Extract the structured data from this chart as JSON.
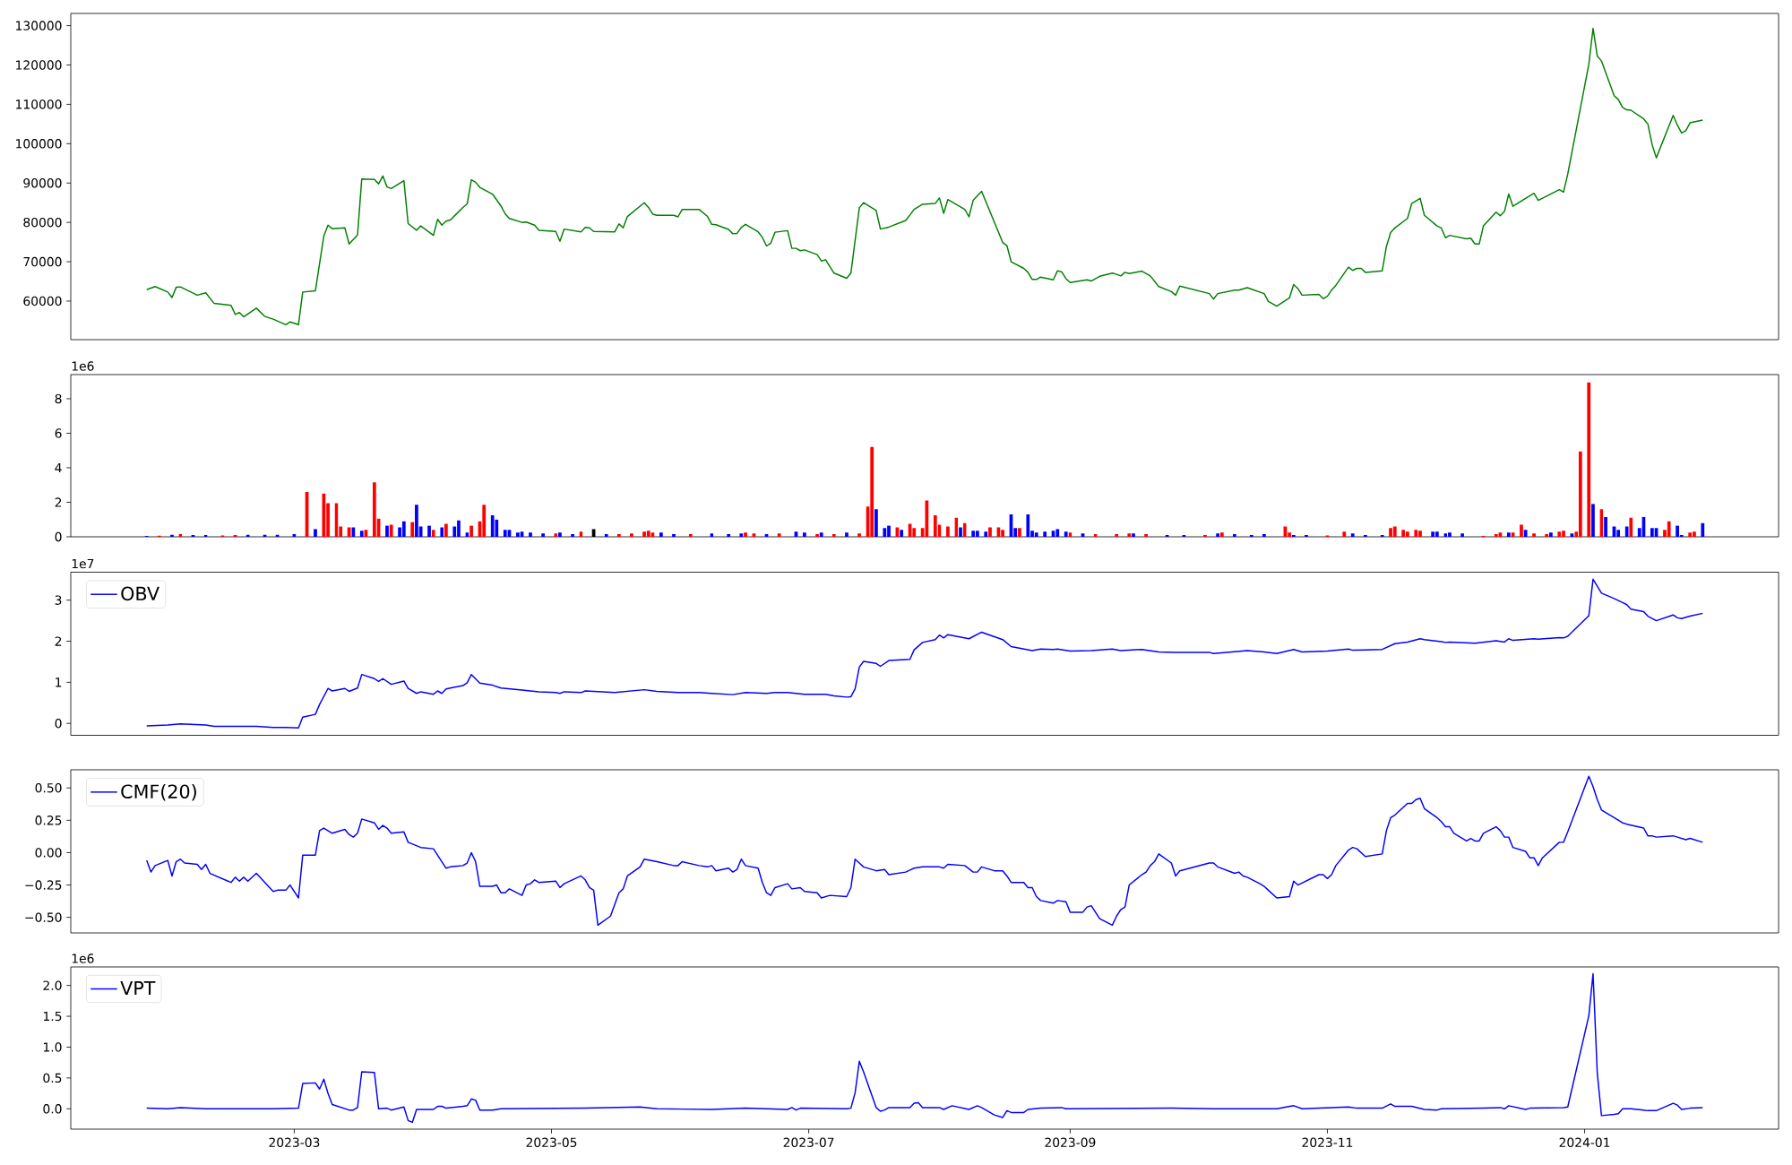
{
  "chart_data": [
    {
      "type": "line",
      "color": "#008000",
      "xlim": [
        "2023-01-07",
        "2024-02-16"
      ],
      "ylim": [
        50200,
        133100
      ],
      "yticks": [
        60000,
        70000,
        80000,
        90000,
        100000,
        110000,
        120000,
        130000
      ],
      "tick_labels": "y",
      "x": [
        "2023-01-25",
        "2023-01-27",
        "2023-01-30",
        "2023-01-31",
        "2023-02-01",
        "2023-02-02",
        "2023-02-06",
        "2023-02-08",
        "2023-02-10",
        "2023-02-14",
        "2023-02-15",
        "2023-02-16",
        "2023-02-17",
        "2023-02-20",
        "2023-02-22",
        "2023-02-24",
        "2023-02-27",
        "2023-02-28",
        "2023-03-02",
        "2023-03-03",
        "2023-03-06",
        "2023-03-08",
        "2023-03-09",
        "2023-03-10",
        "2023-03-13",
        "2023-03-14",
        "2023-03-16",
        "2023-03-17",
        "2023-03-20",
        "2023-03-21",
        "2023-03-22",
        "2023-03-23",
        "2023-03-24",
        "2023-03-27",
        "2023-03-28",
        "2023-03-30",
        "2023-03-31",
        "2023-04-03",
        "2023-04-04",
        "2023-04-05",
        "2023-04-06",
        "2023-04-07",
        "2023-04-10",
        "2023-04-11",
        "2023-04-12",
        "2023-04-13",
        "2023-04-14",
        "2023-04-17",
        "2023-04-19",
        "2023-04-20",
        "2023-04-21",
        "2023-04-24",
        "2023-04-25",
        "2023-04-27",
        "2023-04-28",
        "2023-05-02",
        "2023-05-03",
        "2023-05-04",
        "2023-05-08",
        "2023-05-09",
        "2023-05-10",
        "2023-05-11",
        "2023-05-16",
        "2023-05-17",
        "2023-05-18",
        "2023-05-19",
        "2023-05-23",
        "2023-05-24",
        "2023-05-25",
        "2023-05-26",
        "2023-05-30",
        "2023-05-31",
        "2023-06-01",
        "2023-06-05",
        "2023-06-07",
        "2023-06-08",
        "2023-06-09",
        "2023-06-12",
        "2023-06-13",
        "2023-06-14",
        "2023-06-15",
        "2023-06-16",
        "2023-06-19",
        "2023-06-20",
        "2023-06-21",
        "2023-06-22",
        "2023-06-23",
        "2023-06-26",
        "2023-06-27",
        "2023-06-28",
        "2023-06-29",
        "2023-06-30",
        "2023-07-03",
        "2023-07-04",
        "2023-07-05",
        "2023-07-07",
        "2023-07-10",
        "2023-07-11",
        "2023-07-13",
        "2023-07-14",
        "2023-07-17",
        "2023-07-18",
        "2023-07-20",
        "2023-07-24",
        "2023-07-26",
        "2023-07-28",
        "2023-07-31",
        "2023-08-01",
        "2023-08-02",
        "2023-08-03",
        "2023-08-07",
        "2023-08-08",
        "2023-08-09",
        "2023-08-11",
        "2023-08-16",
        "2023-08-17",
        "2023-08-18",
        "2023-08-21",
        "2023-08-22",
        "2023-08-23",
        "2023-08-24",
        "2023-08-25",
        "2023-08-28",
        "2023-08-29",
        "2023-08-30",
        "2023-08-31",
        "2023-09-01",
        "2023-09-05",
        "2023-09-06",
        "2023-09-08",
        "2023-09-11",
        "2023-09-12",
        "2023-09-13",
        "2023-09-14",
        "2023-09-15",
        "2023-09-18",
        "2023-09-20",
        "2023-09-22",
        "2023-09-25",
        "2023-09-26",
        "2023-09-27",
        "2023-10-04",
        "2023-10-05",
        "2023-10-06",
        "2023-10-10",
        "2023-10-11",
        "2023-10-13",
        "2023-10-17",
        "2023-10-18",
        "2023-10-20",
        "2023-10-23",
        "2023-10-24",
        "2023-10-25",
        "2023-10-26",
        "2023-10-30",
        "2023-10-31",
        "2023-11-01",
        "2023-11-02",
        "2023-11-03",
        "2023-11-06",
        "2023-11-07",
        "2023-11-08",
        "2023-11-09",
        "2023-11-10",
        "2023-11-14",
        "2023-11-15",
        "2023-11-16",
        "2023-11-17",
        "2023-11-20",
        "2023-11-21",
        "2023-11-23",
        "2023-11-24",
        "2023-11-27",
        "2023-11-28",
        "2023-11-29",
        "2023-11-30",
        "2023-12-04",
        "2023-12-05",
        "2023-12-06",
        "2023-12-07",
        "2023-12-08",
        "2023-12-11",
        "2023-12-12",
        "2023-12-13",
        "2023-12-14",
        "2023-12-15",
        "2023-12-18",
        "2023-12-20",
        "2023-12-21",
        "2023-12-26",
        "2023-12-27",
        "2023-12-28",
        "2024-01-02",
        "2024-01-03",
        "2024-01-04",
        "2024-01-05",
        "2024-01-08",
        "2024-01-09",
        "2024-01-10",
        "2024-01-11",
        "2024-01-12",
        "2024-01-15",
        "2024-01-16",
        "2024-01-17",
        "2024-01-18",
        "2024-01-22",
        "2024-01-23",
        "2024-01-24",
        "2024-01-25",
        "2024-01-26",
        "2024-01-29"
      ],
      "values": [
        62900,
        63700,
        62300,
        60900,
        63500,
        63600,
        61500,
        62100,
        59400,
        58900,
        56600,
        57100,
        56000,
        58200,
        56100,
        55400,
        54000,
        54700,
        54000,
        62300,
        62600,
        76500,
        79300,
        78400,
        78600,
        74500,
        76800,
        91000,
        90900,
        89800,
        91800,
        89000,
        88600,
        90600,
        79700,
        78000,
        79100,
        76700,
        80800,
        79300,
        80300,
        80600,
        83800,
        84700,
        90800,
        90200,
        88900,
        87200,
        84200,
        82200,
        81000,
        80000,
        80100,
        79300,
        78000,
        77700,
        75200,
        78300,
        77600,
        78700,
        78600,
        77700,
        77600,
        79600,
        78600,
        81500,
        85000,
        83800,
        82100,
        81800,
        81800,
        81400,
        83300,
        83300,
        81500,
        79500,
        79400,
        78200,
        77100,
        77200,
        78700,
        79500,
        77600,
        76200,
        74000,
        74700,
        77500,
        77900,
        73400,
        73400,
        72800,
        73000,
        71800,
        70200,
        70500,
        67100,
        65800,
        67100,
        83700,
        85000,
        83000,
        78300,
        78800,
        80500,
        83300,
        84600,
        84800,
        86200,
        82300,
        85800,
        83300,
        81400,
        85600,
        87900,
        74900,
        74100,
        70000,
        68300,
        67300,
        65500,
        65500,
        66100,
        65400,
        67700,
        67400,
        65700,
        64700,
        65400,
        65100,
        66300,
        67100,
        66800,
        66400,
        67300,
        67000,
        67600,
        66400,
        63700,
        62400,
        61500,
        63800,
        61900,
        60500,
        61900,
        62800,
        62800,
        63400,
        61900,
        59900,
        58700,
        60800,
        64200,
        63200,
        61500,
        61700,
        60600,
        61200,
        62800,
        64000,
        68600,
        67800,
        68300,
        68300,
        67300,
        67700,
        73900,
        77400,
        78600,
        81000,
        84800,
        86100,
        81800,
        79100,
        78600,
        76100,
        76700,
        75800,
        76000,
        74500,
        74500,
        79100,
        82600,
        81700,
        82800,
        87200,
        84100,
        86100,
        87400,
        85600,
        88300,
        87700,
        92300,
        120200,
        129300,
        122300,
        121000,
        112200,
        111200,
        109200,
        108600,
        108500,
        106300,
        105000,
        99800,
        96400,
        107200,
        104700,
        102700,
        103300,
        105300,
        106000
      ]
    },
    {
      "type": "bar",
      "xlim": [
        "2023-01-07",
        "2024-02-16"
      ],
      "ylim": [
        0,
        9.4
      ],
      "yticks": [
        0,
        2,
        4,
        6,
        8
      ],
      "tick_labels": "y",
      "annotations": [
        "1e6"
      ],
      "x": [
        "2023-01-25",
        "2023-01-28",
        "2023-01-31",
        "2023-02-02",
        "2023-02-05",
        "2023-02-08",
        "2023-02-12",
        "2023-02-15",
        "2023-02-18",
        "2023-02-22",
        "2023-02-25",
        "2023-03-01",
        "2023-03-04",
        "2023-03-06",
        "2023-03-08",
        "2023-03-09",
        "2023-03-11",
        "2023-03-12",
        "2023-03-14",
        "2023-03-15",
        "2023-03-17",
        "2023-03-18",
        "2023-03-20",
        "2023-03-21",
        "2023-03-23",
        "2023-03-24",
        "2023-03-26",
        "2023-03-27",
        "2023-03-29",
        "2023-03-30",
        "2023-03-31",
        "2023-04-02",
        "2023-04-03",
        "2023-04-05",
        "2023-04-06",
        "2023-04-08",
        "2023-04-09",
        "2023-04-11",
        "2023-04-12",
        "2023-04-14",
        "2023-04-15",
        "2023-04-17",
        "2023-04-18",
        "2023-04-20",
        "2023-04-21",
        "2023-04-23",
        "2023-04-24",
        "2023-04-26",
        "2023-04-29",
        "2023-05-02",
        "2023-05-03",
        "2023-05-06",
        "2023-05-08",
        "2023-05-11",
        "2023-05-14",
        "2023-05-17",
        "2023-05-20",
        "2023-05-23",
        "2023-05-24",
        "2023-05-25",
        "2023-05-27",
        "2023-05-30",
        "2023-06-03",
        "2023-06-08",
        "2023-06-12",
        "2023-06-15",
        "2023-06-16",
        "2023-06-18",
        "2023-06-21",
        "2023-06-24",
        "2023-06-28",
        "2023-06-30",
        "2023-07-03",
        "2023-07-04",
        "2023-07-07",
        "2023-07-10",
        "2023-07-13",
        "2023-07-15",
        "2023-07-16",
        "2023-07-17",
        "2023-07-19",
        "2023-07-20",
        "2023-07-22",
        "2023-07-23",
        "2023-07-25",
        "2023-07-26",
        "2023-07-28",
        "2023-07-29",
        "2023-07-31",
        "2023-08-01",
        "2023-08-03",
        "2023-08-05",
        "2023-08-06",
        "2023-08-07",
        "2023-08-09",
        "2023-08-10",
        "2023-08-12",
        "2023-08-13",
        "2023-08-15",
        "2023-08-16",
        "2023-08-18",
        "2023-08-19",
        "2023-08-20",
        "2023-08-22",
        "2023-08-23",
        "2023-08-24",
        "2023-08-26",
        "2023-08-28",
        "2023-08-29",
        "2023-08-31",
        "2023-09-01",
        "2023-09-04",
        "2023-09-07",
        "2023-09-12",
        "2023-09-15",
        "2023-09-16",
        "2023-09-19",
        "2023-09-24",
        "2023-09-28",
        "2023-10-03",
        "2023-10-06",
        "2023-10-07",
        "2023-10-10",
        "2023-10-14",
        "2023-10-17",
        "2023-10-22",
        "2023-10-23",
        "2023-10-24",
        "2023-10-27",
        "2023-11-01",
        "2023-11-05",
        "2023-11-07",
        "2023-11-10",
        "2023-11-14",
        "2023-11-16",
        "2023-11-17",
        "2023-11-19",
        "2023-11-20",
        "2023-11-22",
        "2023-11-23",
        "2023-11-26",
        "2023-11-27",
        "2023-11-29",
        "2023-11-30",
        "2023-12-03",
        "2023-12-08",
        "2023-12-11",
        "2023-12-12",
        "2023-12-14",
        "2023-12-15",
        "2023-12-17",
        "2023-12-18",
        "2023-12-20",
        "2023-12-23",
        "2023-12-24",
        "2023-12-26",
        "2023-12-27",
        "2023-12-29",
        "2023-12-30",
        "2023-12-31",
        "2024-01-02",
        "2024-01-03",
        "2024-01-05",
        "2024-01-06",
        "2024-01-08",
        "2024-01-09",
        "2024-01-11",
        "2024-01-12",
        "2024-01-14",
        "2024-01-15",
        "2024-01-17",
        "2024-01-18",
        "2024-01-20",
        "2024-01-21",
        "2024-01-23",
        "2024-01-24",
        "2024-01-26",
        "2024-01-27",
        "2024-01-29"
      ],
      "values": [
        0.05,
        0.06,
        0.12,
        0.17,
        0.1,
        0.1,
        0.08,
        0.1,
        0.12,
        0.12,
        0.12,
        0.15,
        2.6,
        0.45,
        2.5,
        1.95,
        1.95,
        0.6,
        0.55,
        0.55,
        0.35,
        0.4,
        3.15,
        1.05,
        0.65,
        0.7,
        0.55,
        0.9,
        0.85,
        1.85,
        0.6,
        0.65,
        0.4,
        0.55,
        0.75,
        0.6,
        0.95,
        0.25,
        0.65,
        0.9,
        1.85,
        1.25,
        1.0,
        0.4,
        0.4,
        0.25,
        0.3,
        0.25,
        0.2,
        0.2,
        0.25,
        0.15,
        0.3,
        0.45,
        0.15,
        0.15,
        0.2,
        0.3,
        0.35,
        0.25,
        0.25,
        0.15,
        0.15,
        0.2,
        0.15,
        0.2,
        0.25,
        0.2,
        0.15,
        0.2,
        0.3,
        0.25,
        0.15,
        0.25,
        0.15,
        0.25,
        0.2,
        1.75,
        5.2,
        1.6,
        0.5,
        0.65,
        0.55,
        0.4,
        0.75,
        0.5,
        0.5,
        2.1,
        1.25,
        0.7,
        0.6,
        1.1,
        0.55,
        0.8,
        0.35,
        0.35,
        0.3,
        0.55,
        0.55,
        0.4,
        1.3,
        0.5,
        0.5,
        1.3,
        0.35,
        0.25,
        0.3,
        0.35,
        0.45,
        0.3,
        0.25,
        0.2,
        0.15,
        0.15,
        0.2,
        0.2,
        0.15,
        0.1,
        0.1,
        0.1,
        0.2,
        0.25,
        0.15,
        0.1,
        0.15,
        0.6,
        0.25,
        0.1,
        0.1,
        0.08,
        0.3,
        0.2,
        0.1,
        0.1,
        0.5,
        0.6,
        0.4,
        0.3,
        0.4,
        0.35,
        0.3,
        0.3,
        0.2,
        0.25,
        0.2,
        0.05,
        0.15,
        0.25,
        0.25,
        0.25,
        0.7,
        0.4,
        0.2,
        0.15,
        0.25,
        0.3,
        0.35,
        0.2,
        0.3,
        4.95,
        8.95,
        1.9,
        1.6,
        1.15,
        0.6,
        0.4,
        0.6,
        1.1,
        0.5,
        1.15,
        0.5,
        0.5,
        0.4,
        0.9,
        0.65,
        0.1,
        0.25,
        0.3,
        0.8
      ],
      "colors": [
        "#0000ff",
        "#ff0000",
        "#0000ff",
        "#ff0000",
        "#0000ff",
        "#0000ff",
        "#ff0000",
        "#ff0000",
        "#0000ff",
        "#0000ff",
        "#0000ff",
        "#0000ff",
        "#ff0000",
        "#0000ff",
        "#ff0000",
        "#ff0000",
        "#ff0000",
        "#ff0000",
        "#ff0000",
        "#0000ff",
        "#0000ff",
        "#ff0000",
        "#ff0000",
        "#ff0000",
        "#0000ff",
        "#ff0000",
        "#0000ff",
        "#0000ff",
        "#ff0000",
        "#0000ff",
        "#0000ff",
        "#0000ff",
        "#ff0000",
        "#0000ff",
        "#ff0000",
        "#0000ff",
        "#0000ff",
        "#0000ff",
        "#ff0000",
        "#ff0000",
        "#ff0000",
        "#0000ff",
        "#0000ff",
        "#0000ff",
        "#0000ff",
        "#0000ff",
        "#0000ff",
        "#0000ff",
        "#0000ff",
        "#ff0000",
        "#0000ff",
        "#0000ff",
        "#ff0000",
        "#000000",
        "#0000ff",
        "#ff0000",
        "#ff0000",
        "#ff0000",
        "#ff0000",
        "#ff0000",
        "#0000ff",
        "#0000ff",
        "#ff0000",
        "#0000ff",
        "#0000ff",
        "#0000ff",
        "#ff0000",
        "#ff0000",
        "#0000ff",
        "#ff0000",
        "#0000ff",
        "#0000ff",
        "#ff0000",
        "#0000ff",
        "#ff0000",
        "#0000ff",
        "#ff0000",
        "#ff0000",
        "#ff0000",
        "#0000ff",
        "#0000ff",
        "#0000ff",
        "#ff0000",
        "#0000ff",
        "#ff0000",
        "#ff0000",
        "#ff0000",
        "#ff0000",
        "#ff0000",
        "#ff0000",
        "#ff0000",
        "#ff0000",
        "#0000ff",
        "#ff0000",
        "#0000ff",
        "#0000ff",
        "#0000ff",
        "#ff0000",
        "#ff0000",
        "#ff0000",
        "#0000ff",
        "#0000ff",
        "#ff0000",
        "#0000ff",
        "#0000ff",
        "#0000ff",
        "#0000ff",
        "#0000ff",
        "#0000ff",
        "#0000ff",
        "#ff0000",
        "#0000ff",
        "#ff0000",
        "#ff0000",
        "#ff0000",
        "#0000ff",
        "#ff0000",
        "#0000ff",
        "#0000ff",
        "#ff0000",
        "#0000ff",
        "#ff0000",
        "#0000ff",
        "#0000ff",
        "#0000ff",
        "#ff0000",
        "#ff0000",
        "#0000ff",
        "#0000ff",
        "#ff0000",
        "#ff0000",
        "#0000ff",
        "#0000ff",
        "#0000ff",
        "#ff0000",
        "#ff0000",
        "#ff0000",
        "#ff0000",
        "#ff0000",
        "#ff0000",
        "#0000ff",
        "#0000ff",
        "#0000ff",
        "#0000ff",
        "#0000ff",
        "#ff0000",
        "#ff0000",
        "#ff0000",
        "#0000ff",
        "#ff0000",
        "#ff0000",
        "#0000ff",
        "#ff0000",
        "#ff0000",
        "#0000ff",
        "#ff0000",
        "#ff0000",
        "#0000ff",
        "#ff0000",
        "#ff0000",
        "#ff0000",
        "#0000ff",
        "#ff0000",
        "#0000ff",
        "#0000ff",
        "#0000ff",
        "#0000ff",
        "#ff0000",
        "#0000ff",
        "#0000ff",
        "#0000ff",
        "#0000ff",
        "#ff0000",
        "#ff0000",
        "#0000ff",
        "#0000ff",
        "#ff0000",
        "#ff0000",
        "#0000ff"
      ]
    },
    {
      "type": "line",
      "xlim": [
        "2023-01-07",
        "2024-02-16"
      ],
      "ylim": [
        -0.29,
        3.68
      ],
      "yticks": [
        0,
        1,
        2,
        3
      ],
      "tick_labels": "y",
      "legend": "top left",
      "annotations": [
        "1e7"
      ],
      "x": [
        "2023-01-25",
        "2023-01-30",
        "2023-02-02",
        "2023-02-08",
        "2023-02-10",
        "2023-02-16",
        "2023-02-20",
        "2023-02-24",
        "2023-02-27",
        "2023-03-02",
        "2023-03-03",
        "2023-03-06",
        "2023-03-07",
        "2023-03-09",
        "2023-03-10",
        "2023-03-13",
        "2023-03-14",
        "2023-03-16",
        "2023-03-17",
        "2023-03-20",
        "2023-03-21",
        "2023-03-22",
        "2023-03-24",
        "2023-03-27",
        "2023-03-28",
        "2023-03-30",
        "2023-03-31",
        "2023-04-03",
        "2023-04-04",
        "2023-04-05",
        "2023-04-06",
        "2023-04-10",
        "2023-04-11",
        "2023-04-12",
        "2023-04-14",
        "2023-04-17",
        "2023-04-19",
        "2023-04-24",
        "2023-04-28",
        "2023-05-02",
        "2023-05-03",
        "2023-05-04",
        "2023-05-08",
        "2023-05-09",
        "2023-05-16",
        "2023-05-23",
        "2023-05-26",
        "2023-05-31",
        "2023-06-05",
        "2023-06-08",
        "2023-06-13",
        "2023-06-16",
        "2023-06-21",
        "2023-06-23",
        "2023-06-26",
        "2023-06-30",
        "2023-07-05",
        "2023-07-07",
        "2023-07-10",
        "2023-07-11",
        "2023-07-12",
        "2023-07-13",
        "2023-07-14",
        "2023-07-17",
        "2023-07-18",
        "2023-07-20",
        "2023-07-25",
        "2023-07-26",
        "2023-07-28",
        "2023-07-31",
        "2023-08-01",
        "2023-08-02",
        "2023-08-03",
        "2023-08-08",
        "2023-08-11",
        "2023-08-16",
        "2023-08-18",
        "2023-08-23",
        "2023-08-25",
        "2023-08-28",
        "2023-08-29",
        "2023-09-01",
        "2023-09-06",
        "2023-09-11",
        "2023-09-13",
        "2023-09-18",
        "2023-09-22",
        "2023-09-26",
        "2023-10-04",
        "2023-10-05",
        "2023-10-13",
        "2023-10-17",
        "2023-10-20",
        "2023-10-24",
        "2023-10-26",
        "2023-11-01",
        "2023-11-06",
        "2023-11-07",
        "2023-11-14",
        "2023-11-17",
        "2023-11-20",
        "2023-11-23",
        "2023-11-24",
        "2023-11-28",
        "2023-11-29",
        "2023-11-30",
        "2023-12-06",
        "2023-12-11",
        "2023-12-13",
        "2023-12-14",
        "2023-12-15",
        "2023-12-20",
        "2023-12-21",
        "2023-12-26",
        "2023-12-27",
        "2023-12-28",
        "2024-01-02",
        "2024-01-03",
        "2024-01-05",
        "2024-01-08",
        "2024-01-10",
        "2024-01-11",
        "2024-01-12",
        "2024-01-15",
        "2024-01-16",
        "2024-01-18",
        "2024-01-22",
        "2024-01-23",
        "2024-01-24",
        "2024-01-26",
        "2024-01-29"
      ],
      "series": [
        {
          "name": "OBV",
          "color": "#0000ff",
          "values": [
            -0.06,
            -0.04,
            -0.01,
            -0.04,
            -0.07,
            -0.07,
            -0.07,
            -0.1,
            -0.1,
            -0.11,
            0.15,
            0.22,
            0.46,
            0.85,
            0.79,
            0.85,
            0.78,
            0.86,
            1.19,
            1.09,
            1.02,
            1.09,
            0.95,
            1.03,
            0.85,
            0.73,
            0.77,
            0.71,
            0.79,
            0.73,
            0.84,
            0.92,
            0.99,
            1.19,
            0.98,
            0.93,
            0.86,
            0.81,
            0.77,
            0.75,
            0.73,
            0.77,
            0.75,
            0.79,
            0.75,
            0.82,
            0.78,
            0.75,
            0.75,
            0.73,
            0.7,
            0.75,
            0.73,
            0.75,
            0.75,
            0.71,
            0.71,
            0.67,
            0.64,
            0.65,
            0.84,
            1.37,
            1.51,
            1.46,
            1.39,
            1.53,
            1.56,
            1.79,
            1.97,
            2.04,
            2.15,
            2.08,
            2.16,
            2.06,
            2.22,
            2.04,
            1.87,
            1.77,
            1.81,
            1.8,
            1.81,
            1.76,
            1.77,
            1.81,
            1.77,
            1.8,
            1.74,
            1.73,
            1.73,
            1.7,
            1.77,
            1.74,
            1.7,
            1.8,
            1.74,
            1.76,
            1.81,
            1.78,
            1.8,
            1.94,
            1.98,
            2.06,
            2.04,
            1.99,
            1.97,
            1.98,
            1.95,
            2.01,
            1.98,
            2.06,
            2.02,
            2.06,
            2.05,
            2.09,
            2.08,
            2.12,
            2.62,
            3.51,
            3.17,
            3.04,
            2.94,
            2.89,
            2.78,
            2.72,
            2.61,
            2.5,
            2.64,
            2.57,
            2.55,
            2.61,
            2.68
          ]
        }
      ]
    },
    {
      "type": "line",
      "xlim": [
        "2023-01-07",
        "2024-02-16"
      ],
      "ylim": [
        -0.62,
        0.64
      ],
      "yticks": [
        {
          "value": -0.5,
          "label": "−0.50"
        },
        {
          "value": -0.25,
          "label": "−0.25"
        },
        {
          "value": 0,
          "label": "0.00"
        },
        {
          "value": 0.25,
          "label": "0.25"
        },
        {
          "value": 0.5,
          "label": "0.50"
        }
      ],
      "tick_labels": "y",
      "legend": "top left",
      "x": [
        "2023-01-25",
        "2023-01-26",
        "2023-01-27",
        "2023-01-30",
        "2023-01-31",
        "2023-02-01",
        "2023-02-02",
        "2023-02-03",
        "2023-02-06",
        "2023-02-07",
        "2023-02-08",
        "2023-02-09",
        "2023-02-14",
        "2023-02-15",
        "2023-02-16",
        "2023-02-17",
        "2023-02-18",
        "2023-02-20",
        "2023-02-24",
        "2023-02-25",
        "2023-02-27",
        "2023-02-28",
        "2023-03-02",
        "2023-03-03",
        "2023-03-06",
        "2023-03-07",
        "2023-03-08",
        "2023-03-10",
        "2023-03-13",
        "2023-03-14",
        "2023-03-15",
        "2023-03-16",
        "2023-03-17",
        "2023-03-20",
        "2023-03-21",
        "2023-03-22",
        "2023-03-23",
        "2023-03-24",
        "2023-03-27",
        "2023-03-28",
        "2023-03-31",
        "2023-04-03",
        "2023-04-04",
        "2023-04-06",
        "2023-04-07",
        "2023-04-10",
        "2023-04-11",
        "2023-04-12",
        "2023-04-13",
        "2023-04-14",
        "2023-04-17",
        "2023-04-18",
        "2023-04-19",
        "2023-04-20",
        "2023-04-21",
        "2023-04-24",
        "2023-04-25",
        "2023-04-26",
        "2023-04-27",
        "2023-04-28",
        "2023-05-02",
        "2023-05-03",
        "2023-05-04",
        "2023-05-08",
        "2023-05-09",
        "2023-05-10",
        "2023-05-11",
        "2023-05-12",
        "2023-05-15",
        "2023-05-17",
        "2023-05-18",
        "2023-05-19",
        "2023-05-22",
        "2023-05-23",
        "2023-05-26",
        "2023-05-30",
        "2023-05-31",
        "2023-06-01",
        "2023-06-05",
        "2023-06-07",
        "2023-06-08",
        "2023-06-09",
        "2023-06-12",
        "2023-06-13",
        "2023-06-14",
        "2023-06-15",
        "2023-06-16",
        "2023-06-19",
        "2023-06-20",
        "2023-06-21",
        "2023-06-22",
        "2023-06-23",
        "2023-06-26",
        "2023-06-27",
        "2023-06-29",
        "2023-06-30",
        "2023-07-03",
        "2023-07-04",
        "2023-07-06",
        "2023-07-10",
        "2023-07-11",
        "2023-07-12",
        "2023-07-13",
        "2023-07-14",
        "2023-07-17",
        "2023-07-19",
        "2023-07-20",
        "2023-07-24",
        "2023-07-26",
        "2023-07-28",
        "2023-08-01",
        "2023-08-02",
        "2023-08-03",
        "2023-08-07",
        "2023-08-09",
        "2023-08-10",
        "2023-08-11",
        "2023-08-14",
        "2023-08-16",
        "2023-08-17",
        "2023-08-18",
        "2023-08-21",
        "2023-08-22",
        "2023-08-23",
        "2023-08-24",
        "2023-08-25",
        "2023-08-28",
        "2023-08-29",
        "2023-08-31",
        "2023-09-01",
        "2023-09-04",
        "2023-09-05",
        "2023-09-06",
        "2023-09-08",
        "2023-09-11",
        "2023-09-12",
        "2023-09-13",
        "2023-09-14",
        "2023-09-15",
        "2023-09-18",
        "2023-09-19",
        "2023-09-20",
        "2023-09-21",
        "2023-09-22",
        "2023-09-25",
        "2023-09-26",
        "2023-09-27",
        "2023-10-04",
        "2023-10-05",
        "2023-10-06",
        "2023-10-10",
        "2023-10-11",
        "2023-10-12",
        "2023-10-13",
        "2023-10-16",
        "2023-10-17",
        "2023-10-18",
        "2023-10-20",
        "2023-10-23",
        "2023-10-24",
        "2023-10-25",
        "2023-10-30",
        "2023-10-31",
        "2023-11-01",
        "2023-11-02",
        "2023-11-03",
        "2023-11-06",
        "2023-11-07",
        "2023-11-08",
        "2023-11-10",
        "2023-11-14",
        "2023-11-15",
        "2023-11-16",
        "2023-11-17",
        "2023-11-20",
        "2023-11-21",
        "2023-11-22",
        "2023-11-23",
        "2023-11-24",
        "2023-11-27",
        "2023-11-28",
        "2023-11-29",
        "2023-11-30",
        "2023-12-01",
        "2023-12-04",
        "2023-12-05",
        "2023-12-06",
        "2023-12-07",
        "2023-12-08",
        "2023-12-11",
        "2023-12-12",
        "2023-12-13",
        "2023-12-14",
        "2023-12-15",
        "2023-12-18",
        "2023-12-19",
        "2023-12-20",
        "2023-12-21",
        "2023-12-22",
        "2023-12-26",
        "2023-12-27",
        "2023-12-28",
        "2024-01-02",
        "2024-01-03",
        "2024-01-04",
        "2024-01-05",
        "2024-01-08",
        "2024-01-10",
        "2024-01-11",
        "2024-01-15",
        "2024-01-16",
        "2024-01-17",
        "2024-01-18",
        "2024-01-22",
        "2024-01-23",
        "2024-01-24",
        "2024-01-25",
        "2024-01-26",
        "2024-01-29"
      ],
      "series": [
        {
          "name": "CMF(20)",
          "color": "#0000ff",
          "values": [
            -0.06,
            -0.15,
            -0.1,
            -0.06,
            -0.18,
            -0.07,
            -0.05,
            -0.08,
            -0.09,
            -0.13,
            -0.09,
            -0.16,
            -0.23,
            -0.19,
            -0.22,
            -0.19,
            -0.22,
            -0.16,
            -0.3,
            -0.29,
            -0.29,
            -0.25,
            -0.35,
            -0.02,
            -0.02,
            0.17,
            0.19,
            0.15,
            0.18,
            0.14,
            0.12,
            0.15,
            0.26,
            0.23,
            0.18,
            0.21,
            0.19,
            0.15,
            0.16,
            0.08,
            0.04,
            0.03,
            -0.02,
            -0.12,
            -0.11,
            -0.1,
            -0.08,
            0.0,
            -0.07,
            -0.26,
            -0.26,
            -0.25,
            -0.31,
            -0.31,
            -0.28,
            -0.33,
            -0.25,
            -0.24,
            -0.21,
            -0.23,
            -0.22,
            -0.27,
            -0.24,
            -0.18,
            -0.21,
            -0.27,
            -0.29,
            -0.56,
            -0.49,
            -0.31,
            -0.28,
            -0.18,
            -0.11,
            -0.05,
            -0.07,
            -0.1,
            -0.1,
            -0.07,
            -0.1,
            -0.11,
            -0.1,
            -0.14,
            -0.12,
            -0.15,
            -0.13,
            -0.05,
            -0.1,
            -0.12,
            -0.23,
            -0.31,
            -0.33,
            -0.27,
            -0.24,
            -0.28,
            -0.27,
            -0.3,
            -0.31,
            -0.35,
            -0.33,
            -0.34,
            -0.27,
            -0.05,
            -0.08,
            -0.11,
            -0.14,
            -0.13,
            -0.17,
            -0.15,
            -0.12,
            -0.11,
            -0.11,
            -0.12,
            -0.09,
            -0.1,
            -0.15,
            -0.15,
            -0.11,
            -0.14,
            -0.14,
            -0.18,
            -0.23,
            -0.23,
            -0.27,
            -0.27,
            -0.34,
            -0.37,
            -0.39,
            -0.37,
            -0.38,
            -0.46,
            -0.46,
            -0.42,
            -0.41,
            -0.51,
            -0.56,
            -0.49,
            -0.44,
            -0.42,
            -0.25,
            -0.17,
            -0.15,
            -0.1,
            -0.07,
            -0.01,
            -0.08,
            -0.18,
            -0.14,
            -0.08,
            -0.08,
            -0.11,
            -0.16,
            -0.15,
            -0.18,
            -0.19,
            -0.24,
            -0.26,
            -0.29,
            -0.35,
            -0.34,
            -0.22,
            -0.25,
            -0.17,
            -0.17,
            -0.2,
            -0.17,
            -0.1,
            0.02,
            0.04,
            0.03,
            -0.03,
            -0.01,
            0.17,
            0.27,
            0.29,
            0.38,
            0.38,
            0.41,
            0.42,
            0.34,
            0.27,
            0.24,
            0.2,
            0.2,
            0.15,
            0.09,
            0.11,
            0.09,
            0.09,
            0.15,
            0.2,
            0.17,
            0.12,
            0.12,
            0.04,
            0.01,
            -0.04,
            -0.04,
            -0.1,
            -0.04,
            0.08,
            0.08,
            0.16,
            0.59,
            0.51,
            0.41,
            0.33,
            0.27,
            0.23,
            0.22,
            0.19,
            0.13,
            0.13,
            0.12,
            0.13,
            0.12,
            0.11,
            0.1,
            0.11,
            0.08
          ]
        }
      ]
    },
    {
      "type": "line",
      "xlim": [
        "2023-01-07",
        "2024-02-16"
      ],
      "ylim": [
        -0.33,
        2.3
      ],
      "yticks": [
        {
          "value": 0,
          "label": "0.0"
        },
        {
          "value": 0.5,
          "label": "0.5"
        },
        {
          "value": 1,
          "label": "1.0"
        },
        {
          "value": 1.5,
          "label": "1.5"
        },
        {
          "value": 2,
          "label": "2.0"
        }
      ],
      "xticks": [
        "2023-03",
        "2023-05",
        "2023-07",
        "2023-09",
        "2023-11",
        "2024-01"
      ],
      "legend": "top left",
      "annotations": [
        "1e6"
      ],
      "x": [
        "2023-01-25",
        "2023-01-30",
        "2023-02-02",
        "2023-02-08",
        "2023-02-16",
        "2023-02-24",
        "2023-03-02",
        "2023-03-03",
        "2023-03-06",
        "2023-03-07",
        "2023-03-08",
        "2023-03-09",
        "2023-03-10",
        "2023-03-14",
        "2023-03-15",
        "2023-03-16",
        "2023-03-17",
        "2023-03-20",
        "2023-03-21",
        "2023-03-23",
        "2023-03-24",
        "2023-03-27",
        "2023-03-28",
        "2023-03-29",
        "2023-03-30",
        "2023-04-03",
        "2023-04-04",
        "2023-04-05",
        "2023-04-06",
        "2023-04-10",
        "2023-04-11",
        "2023-04-12",
        "2023-04-13",
        "2023-04-14",
        "2023-04-17",
        "2023-04-19",
        "2023-05-09",
        "2023-05-22",
        "2023-05-26",
        "2023-06-08",
        "2023-06-16",
        "2023-06-26",
        "2023-06-27",
        "2023-06-28",
        "2023-06-29",
        "2023-07-10",
        "2023-07-11",
        "2023-07-12",
        "2023-07-13",
        "2023-07-14",
        "2023-07-17",
        "2023-07-18",
        "2023-07-19",
        "2023-07-20",
        "2023-07-25",
        "2023-07-26",
        "2023-07-27",
        "2023-07-28",
        "2023-08-01",
        "2023-08-02",
        "2023-08-04",
        "2023-08-08",
        "2023-08-10",
        "2023-08-11",
        "2023-08-14",
        "2023-08-16",
        "2023-08-17",
        "2023-08-18",
        "2023-08-21",
        "2023-08-22",
        "2023-08-25",
        "2023-08-30",
        "2023-08-31",
        "2023-09-25",
        "2023-10-05",
        "2023-10-20",
        "2023-10-24",
        "2023-10-26",
        "2023-11-06",
        "2023-11-08",
        "2023-11-14",
        "2023-11-16",
        "2023-11-17",
        "2023-11-21",
        "2023-11-24",
        "2023-11-27",
        "2023-11-28",
        "2023-12-08",
        "2023-12-12",
        "2023-12-13",
        "2023-12-14",
        "2023-12-18",
        "2023-12-19",
        "2023-12-27",
        "2023-12-28",
        "2024-01-02",
        "2024-01-03",
        "2024-01-04",
        "2024-01-05",
        "2024-01-08",
        "2024-01-09",
        "2024-01-10",
        "2024-01-12",
        "2024-01-15",
        "2024-01-16",
        "2024-01-18",
        "2024-01-22",
        "2024-01-23",
        "2024-01-24",
        "2024-01-26",
        "2024-01-29"
      ],
      "series": [
        {
          "name": "VPT",
          "color": "#0000ff",
          "values": [
            0.01,
            0.0,
            0.02,
            0.0,
            0.0,
            0.0,
            0.01,
            0.41,
            0.42,
            0.32,
            0.48,
            0.25,
            0.07,
            -0.02,
            -0.02,
            0.02,
            0.6,
            0.59,
            0.0,
            0.01,
            -0.02,
            0.03,
            -0.19,
            -0.22,
            -0.01,
            -0.01,
            0.04,
            0.04,
            0.01,
            0.04,
            0.05,
            0.16,
            0.14,
            -0.02,
            -0.02,
            0.0,
            0.01,
            0.03,
            0.0,
            -0.01,
            0.01,
            -0.01,
            0.02,
            -0.02,
            0.01,
            0.0,
            0.01,
            0.26,
            0.77,
            0.6,
            0.02,
            -0.04,
            -0.02,
            0.02,
            0.02,
            0.09,
            0.1,
            0.02,
            0.02,
            -0.01,
            0.05,
            -0.01,
            0.05,
            0.02,
            -0.1,
            -0.14,
            -0.03,
            -0.06,
            -0.06,
            -0.01,
            0.01,
            0.02,
            0.0,
            0.01,
            0.0,
            0.0,
            0.05,
            0.0,
            0.03,
            0.01,
            0.01,
            0.08,
            0.04,
            0.04,
            -0.01,
            -0.02,
            0.0,
            0.01,
            0.02,
            0.0,
            0.05,
            -0.01,
            0.01,
            0.02,
            0.03,
            1.51,
            2.19,
            0.58,
            -0.11,
            -0.09,
            -0.08,
            0.0,
            0.0,
            -0.02,
            -0.03,
            -0.03,
            0.09,
            0.06,
            -0.01,
            0.01,
            0.02
          ]
        }
      ]
    }
  ]
}
